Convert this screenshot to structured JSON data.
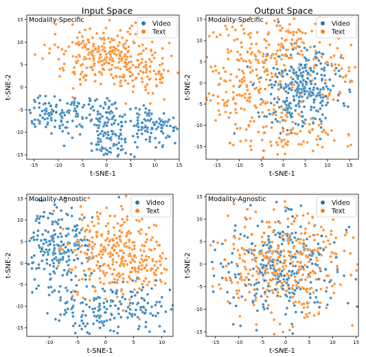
{
  "column_titles": [
    "Input Space",
    "Output Space"
  ],
  "chart_data": [
    {
      "type": "scatter",
      "tag": "Modality-Specific",
      "xlabel": "t-SNE-1",
      "ylabel": "t-SNE-2",
      "xlim": [
        -16.5,
        15
      ],
      "ylim": [
        -16,
        16
      ],
      "xticks": [
        -15,
        -10,
        -5,
        0,
        5,
        10,
        15
      ],
      "yticks": [
        -15,
        -10,
        -5,
        0,
        5,
        10,
        15
      ],
      "legend": "top-right",
      "series": [
        {
          "name": "Video",
          "color": "#1f77b4",
          "clusters": [
            {
              "cx": -12,
              "cy": -6,
              "sx": 2.5,
              "sy": 2,
              "n": 80
            },
            {
              "cx": -2,
              "cy": -7,
              "sx": 4,
              "sy": 2.5,
              "n": 120
            },
            {
              "cx": 1,
              "cy": -13,
              "sx": 2,
              "sy": 2,
              "n": 60
            },
            {
              "cx": 9,
              "cy": -9,
              "sx": 3,
              "sy": 2.5,
              "n": 100
            }
          ]
        },
        {
          "name": "Text",
          "color": "#ff7f0e",
          "clusters": [
            {
              "cx": 0,
              "cy": 7,
              "sx": 6,
              "sy": 3.2,
              "n": 300
            },
            {
              "cx": 9,
              "cy": 2,
              "sx": 2.5,
              "sy": 2.2,
              "n": 40
            }
          ]
        }
      ]
    },
    {
      "type": "scatter",
      "tag": "Modality-Specific",
      "xlabel": "t-SNE-1",
      "ylabel": "t-SNE-2",
      "xlim": [
        -17.5,
        17
      ],
      "ylim": [
        -18,
        16
      ],
      "xticks": [
        -15,
        -10,
        -5,
        0,
        5,
        10,
        15
      ],
      "yticks": [
        -15,
        -10,
        -5,
        0,
        5,
        10,
        15
      ],
      "legend": "top-right",
      "series": [
        {
          "name": "Video",
          "color": "#1f77b4",
          "clusters": [
            {
              "cx": 4,
              "cy": -1.5,
              "sx": 4.5,
              "sy": 4.8,
              "n": 320
            }
          ]
        },
        {
          "name": "Text",
          "color": "#ff7f0e",
          "clusters": [
            {
              "cx": -7,
              "cy": 0,
              "sx": 6,
              "sy": 6.5,
              "n": 230
            },
            {
              "cx": 0,
              "cy": 9,
              "sx": 4.5,
              "sy": 3.5,
              "n": 90
            },
            {
              "cx": 2,
              "cy": -12,
              "sx": 5,
              "sy": 2.5,
              "n": 70
            },
            {
              "cx": 12,
              "cy": 2,
              "sx": 2.5,
              "sy": 5,
              "n": 40
            }
          ]
        }
      ]
    },
    {
      "type": "scatter",
      "tag": "Modality-Agnostic",
      "xlabel": "t-SNE-1",
      "ylabel": "t-SNE-2",
      "xlim": [
        -14,
        12
      ],
      "ylim": [
        -17,
        16
      ],
      "xticks": [
        -10,
        -5,
        0,
        5,
        10
      ],
      "yticks": [
        -15,
        -10,
        -5,
        0,
        5,
        10,
        15
      ],
      "legend": "top-right",
      "series": [
        {
          "name": "Video",
          "color": "#1f77b4",
          "clusters": [
            {
              "cx": -8,
              "cy": 4,
              "sx": 3,
              "sy": 5.5,
              "n": 220
            },
            {
              "cx": 5,
              "cy": -10,
              "sx": 4,
              "sy": 3,
              "n": 110
            },
            {
              "cx": -3,
              "cy": -12,
              "sx": 2.5,
              "sy": 2.5,
              "n": 70
            }
          ]
        },
        {
          "name": "Text",
          "color": "#ff7f0e",
          "clusters": [
            {
              "cx": 1,
              "cy": 2,
              "sx": 4,
              "sy": 5,
              "n": 290
            },
            {
              "cx": 8,
              "cy": 0,
              "sx": 2,
              "sy": 3,
              "n": 50
            }
          ]
        }
      ]
    },
    {
      "type": "scatter",
      "tag": "Modality-Agnostic",
      "xlabel": "t-SNE-1",
      "ylabel": "t-SNE-2",
      "xlim": [
        -17,
        15.5
      ],
      "ylim": [
        -16,
        15.5
      ],
      "xticks": [
        -15,
        -10,
        -5,
        0,
        5,
        10,
        15
      ],
      "yticks": [
        -15,
        -10,
        -5,
        0,
        5,
        10,
        15
      ],
      "legend": "top-right",
      "series": [
        {
          "name": "Video",
          "color": "#1f77b4",
          "clusters": [
            {
              "cx": 0,
              "cy": -1,
              "sx": 6.5,
              "sy": 6,
              "n": 300
            }
          ]
        },
        {
          "name": "Text",
          "color": "#ff7f0e",
          "clusters": [
            {
              "cx": 0,
              "cy": 0,
              "sx": 7,
              "sy": 6.5,
              "n": 380
            }
          ]
        }
      ]
    }
  ]
}
